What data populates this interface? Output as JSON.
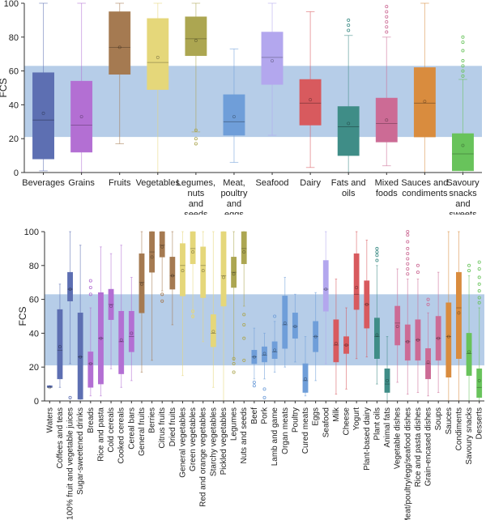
{
  "colors": {
    "band": "#a9c4e4",
    "axis": "#333333",
    "tick_text": "#222222"
  },
  "chart_data": [
    {
      "type": "box",
      "title": "",
      "ylabel": "FCS",
      "xlabel": "",
      "ylim": [
        0,
        100
      ],
      "yticks": [
        0,
        20,
        40,
        60,
        80,
        100
      ],
      "band": [
        21,
        63
      ],
      "categories": [
        {
          "label": "Beverages",
          "color": "#5d6fb2",
          "min": 1,
          "q1": 8,
          "median": 31,
          "q3": 59,
          "max": 100,
          "mean": 35,
          "outliers": []
        },
        {
          "label": "Grains",
          "color": "#b36fd3",
          "min": 0,
          "q1": 12,
          "median": 28,
          "q3": 54,
          "max": 100,
          "mean": 33,
          "outliers": []
        },
        {
          "label": "Fruits",
          "color": "#a57a51",
          "min": 17,
          "q1": 58,
          "median": 74,
          "q3": 95,
          "max": 100,
          "mean": 74,
          "outliers": []
        },
        {
          "label": "Vegetables",
          "color": "#e5d77a",
          "min": 0,
          "q1": 49,
          "median": 65,
          "q3": 91,
          "max": 100,
          "mean": 68,
          "outliers": []
        },
        {
          "label": "Legumes, nuts and seeds",
          "color": "#aca651",
          "min": 24,
          "q1": 69,
          "median": 79,
          "q3": 92,
          "max": 100,
          "mean": 78,
          "outliers": [
            17,
            20,
            25
          ]
        },
        {
          "label": "Meat, poultry and eggs",
          "color": "#6f9ed9",
          "min": 6,
          "q1": 22,
          "median": 30,
          "q3": 46,
          "max": 73,
          "mean": 33,
          "outliers": []
        },
        {
          "label": "Seafood",
          "color": "#b3a7ee",
          "min": 22,
          "q1": 52,
          "median": 68,
          "q3": 83,
          "max": 100,
          "mean": 66,
          "outliers": []
        },
        {
          "label": "Dairy",
          "color": "#d85a5e",
          "min": 3,
          "q1": 28,
          "median": 41,
          "q3": 55,
          "max": 95,
          "mean": 43,
          "outliers": []
        },
        {
          "label": "Fats and oils",
          "color": "#3f8d87",
          "min": 0,
          "q1": 10,
          "median": 27,
          "q3": 39,
          "max": 81,
          "mean": 29,
          "outliers": [
            84,
            87,
            90
          ]
        },
        {
          "label": "Mixed foods",
          "color": "#cc6b95",
          "min": 4,
          "q1": 18,
          "median": 29,
          "q3": 44,
          "max": 80,
          "mean": 31,
          "outliers": [
            83,
            86,
            89,
            92,
            95,
            98
          ]
        },
        {
          "label": "Sauces and condiments",
          "color": "#d98c3e",
          "min": 0,
          "q1": 21,
          "median": 41,
          "q3": 62,
          "max": 100,
          "mean": 42,
          "outliers": []
        },
        {
          "label": "Savoury snacks and sweets",
          "color": "#68c35b",
          "min": 0,
          "q1": 1,
          "median": 11,
          "q3": 23,
          "max": 55,
          "mean": 16,
          "outliers": [
            57,
            60,
            63,
            66,
            72,
            77,
            80
          ]
        }
      ]
    },
    {
      "type": "box",
      "title": "",
      "ylabel": "FCS",
      "xlabel": "",
      "ylim": [
        0,
        100
      ],
      "yticks": [
        0,
        20,
        40,
        60,
        80,
        100
      ],
      "band": [
        21,
        63
      ],
      "categories": [
        {
          "label": "Waters",
          "color": "#5d6fb2",
          "min": 8,
          "q1": 8,
          "median": 8,
          "q3": 9,
          "max": 9,
          "mean": 8,
          "outliers": []
        },
        {
          "label": "Coffees and teas",
          "color": "#5d6fb2",
          "min": 8,
          "q1": 13,
          "median": 30,
          "q3": 54,
          "max": 69,
          "mean": 32,
          "outliers": []
        },
        {
          "label": "100% fruit and vegetable juices",
          "color": "#5d6fb2",
          "min": 22,
          "q1": 59,
          "median": 66,
          "q3": 76,
          "max": 100,
          "mean": 66,
          "outliers": [
            2
          ]
        },
        {
          "label": "Sugar-sweetened drinks",
          "color": "#5d6fb2",
          "min": 1,
          "q1": 1,
          "median": 26,
          "q3": 52,
          "max": 92,
          "mean": 26,
          "outliers": []
        },
        {
          "label": "Breads",
          "color": "#b36fd3",
          "min": 3,
          "q1": 8,
          "median": 22,
          "q3": 29,
          "max": 55,
          "mean": 22,
          "outliers": [
            63,
            67,
            71
          ]
        },
        {
          "label": "Rice and pasta",
          "color": "#b36fd3",
          "min": 3,
          "q1": 10,
          "median": 37,
          "q3": 64,
          "max": 91,
          "mean": 37,
          "outliers": []
        },
        {
          "label": "Cold cereals",
          "color": "#b36fd3",
          "min": 19,
          "q1": 48,
          "median": 57,
          "q3": 66,
          "max": 87,
          "mean": 56,
          "outliers": []
        },
        {
          "label": "Cooked cereals",
          "color": "#b36fd3",
          "min": 8,
          "q1": 16,
          "median": 35,
          "q3": 53,
          "max": 92,
          "mean": 36,
          "outliers": []
        },
        {
          "label": "Cereal bars",
          "color": "#b36fd3",
          "min": 12,
          "q1": 29,
          "median": 38,
          "q3": 53,
          "max": 73,
          "mean": 40,
          "outliers": []
        },
        {
          "label": "General fruits",
          "color": "#a57a51",
          "min": 17,
          "q1": 52,
          "median": 70,
          "q3": 87,
          "max": 100,
          "mean": 69,
          "outliers": []
        },
        {
          "label": "Berries",
          "color": "#a57a51",
          "min": 24,
          "q1": 76,
          "median": 88,
          "q3": 100,
          "max": 100,
          "mean": 85,
          "outliers": []
        },
        {
          "label": "Citrus fruits",
          "color": "#a57a51",
          "min": 65,
          "q1": 85,
          "median": 92,
          "q3": 100,
          "max": 100,
          "mean": 91,
          "outliers": [
            59,
            63
          ]
        },
        {
          "label": "Dried fruits",
          "color": "#a57a51",
          "min": 45,
          "q1": 66,
          "median": 74,
          "q3": 85,
          "max": 100,
          "mean": 74,
          "outliers": []
        },
        {
          "label": "General vegetables",
          "color": "#e5d77a",
          "min": 15,
          "q1": 62,
          "median": 80,
          "q3": 93,
          "max": 100,
          "mean": 77,
          "outliers": []
        },
        {
          "label": "Green vegetables",
          "color": "#e5d77a",
          "min": 49,
          "q1": 81,
          "median": 90,
          "q3": 100,
          "max": 100,
          "mean": 88,
          "outliers": [
            50,
            53
          ]
        },
        {
          "label": "Red and orange vegetables",
          "color": "#e5d77a",
          "min": 35,
          "q1": 61,
          "median": 80,
          "q3": 91,
          "max": 100,
          "mean": 77,
          "outliers": []
        },
        {
          "label": "Starchy vegetables",
          "color": "#e5d77a",
          "min": 8,
          "q1": 32,
          "median": 40,
          "q3": 51,
          "max": 100,
          "mean": 41,
          "outliers": []
        },
        {
          "label": "Pickled vegetables",
          "color": "#e5d77a",
          "min": 0,
          "q1": 56,
          "median": 74,
          "q3": 100,
          "max": 100,
          "mean": 73,
          "outliers": []
        },
        {
          "label": "Legumes",
          "color": "#aca651",
          "min": 24,
          "q1": 67,
          "median": 76,
          "q3": 85,
          "max": 100,
          "mean": 75,
          "outliers": [
            17,
            22,
            25
          ]
        },
        {
          "label": "Nuts and seeds",
          "color": "#aca651",
          "min": 56,
          "q1": 81,
          "median": 90,
          "q3": 100,
          "max": 100,
          "mean": 88,
          "outliers": [
            24,
            37,
            45,
            51
          ]
        },
        {
          "label": "Beef",
          "color": "#6f9ed9",
          "min": 13,
          "q1": 22,
          "median": 26,
          "q3": 30,
          "max": 43,
          "mean": 26,
          "outliers": [
            9,
            11
          ]
        },
        {
          "label": "Pork",
          "color": "#6f9ed9",
          "min": 13,
          "q1": 23,
          "median": 27,
          "q3": 32,
          "max": 40,
          "mean": 28,
          "outliers": [
            2,
            7
          ]
        },
        {
          "label": "Lamb and game",
          "color": "#6f9ed9",
          "min": 17,
          "q1": 25,
          "median": 29,
          "q3": 35,
          "max": 47,
          "mean": 30,
          "outliers": [
            50
          ]
        },
        {
          "label": "Organ meats",
          "color": "#6f9ed9",
          "min": 20,
          "q1": 31,
          "median": 45,
          "q3": 62,
          "max": 73,
          "mean": 46,
          "outliers": []
        },
        {
          "label": "Poultry",
          "color": "#6f9ed9",
          "min": 23,
          "q1": 37,
          "median": 44,
          "q3": 52,
          "max": 63,
          "mean": 44,
          "outliers": []
        },
        {
          "label": "Cured meats",
          "color": "#6f9ed9",
          "min": 3,
          "q1": 5,
          "median": 12,
          "q3": 22,
          "max": 38,
          "mean": 13,
          "outliers": []
        },
        {
          "label": "Eggs",
          "color": "#6f9ed9",
          "min": 12,
          "q1": 29,
          "median": 38,
          "q3": 47,
          "max": 64,
          "mean": 38,
          "outliers": []
        },
        {
          "label": "Seafood",
          "color": "#b3a7ee",
          "min": 22,
          "q1": 53,
          "median": 66,
          "q3": 83,
          "max": 100,
          "mean": 66,
          "outliers": []
        },
        {
          "label": "Milk",
          "color": "#d85a5e",
          "min": 4,
          "q1": 23,
          "median": 33,
          "q3": 48,
          "max": 72,
          "mean": 34,
          "outliers": []
        },
        {
          "label": "Cheese",
          "color": "#d85a5e",
          "min": 7,
          "q1": 28,
          "median": 33,
          "q3": 38,
          "max": 55,
          "mean": 33,
          "outliers": []
        },
        {
          "label": "Yogurt",
          "color": "#d85a5e",
          "min": 25,
          "q1": 54,
          "median": 63,
          "q3": 87,
          "max": 100,
          "mean": 67,
          "outliers": []
        },
        {
          "label": "Plant-based dairy",
          "color": "#d85a5e",
          "min": 26,
          "q1": 43,
          "median": 57,
          "q3": 71,
          "max": 95,
          "mean": 57,
          "outliers": []
        },
        {
          "label": "Plant oils",
          "color": "#3f8d87",
          "min": 10,
          "q1": 25,
          "median": 38,
          "q3": 49,
          "max": 80,
          "mean": 39,
          "outliers": [
            83,
            86,
            88,
            90
          ]
        },
        {
          "label": "Animal fats",
          "color": "#3f8d87",
          "min": 0,
          "q1": 5,
          "median": 10,
          "q3": 19,
          "max": 38,
          "mean": 12,
          "outliers": []
        },
        {
          "label": "Vegetable dishes",
          "color": "#cc6b95",
          "min": 11,
          "q1": 33,
          "median": 46,
          "q3": 56,
          "max": 78,
          "mean": 44,
          "outliers": []
        },
        {
          "label": "Meat/poultry/egg/seafood dishes",
          "color": "#cc6b95",
          "min": 4,
          "q1": 24,
          "median": 35,
          "q3": 45,
          "max": 72,
          "mean": 35,
          "outliers": [
            75,
            78,
            81,
            84,
            87,
            90,
            94,
            98,
            100
          ]
        },
        {
          "label": "Rice and pasta dishes",
          "color": "#cc6b95",
          "min": 5,
          "q1": 24,
          "median": 36,
          "q3": 48,
          "max": 72,
          "mean": 36,
          "outliers": [
            76,
            80
          ]
        },
        {
          "label": "Grain-encased dishes",
          "color": "#cc6b95",
          "min": 3,
          "q1": 13,
          "median": 22,
          "q3": 31,
          "max": 52,
          "mean": 23,
          "outliers": [
            57,
            60
          ]
        },
        {
          "label": "Soups",
          "color": "#cc6b95",
          "min": 5,
          "q1": 24,
          "median": 37,
          "q3": 50,
          "max": 76,
          "mean": 37,
          "outliers": []
        },
        {
          "label": "Sauces",
          "color": "#d98c3e",
          "min": 0,
          "q1": 14,
          "median": 38,
          "q3": 58,
          "max": 100,
          "mean": 38,
          "outliers": []
        },
        {
          "label": "Condiments",
          "color": "#d98c3e",
          "min": 0,
          "q1": 25,
          "median": 55,
          "q3": 76,
          "max": 100,
          "mean": 52,
          "outliers": []
        },
        {
          "label": "Savoury snacks",
          "color": "#68c35b",
          "min": 0,
          "q1": 15,
          "median": 28,
          "q3": 40,
          "max": 74,
          "mean": 29,
          "outliers": [
            77,
            80
          ]
        },
        {
          "label": "Desserts",
          "color": "#68c35b",
          "min": 0,
          "q1": 2,
          "median": 8,
          "q3": 19,
          "max": 55,
          "mean": 12,
          "outliers": [
            58,
            61,
            65,
            69,
            73,
            78,
            82
          ]
        }
      ]
    }
  ]
}
